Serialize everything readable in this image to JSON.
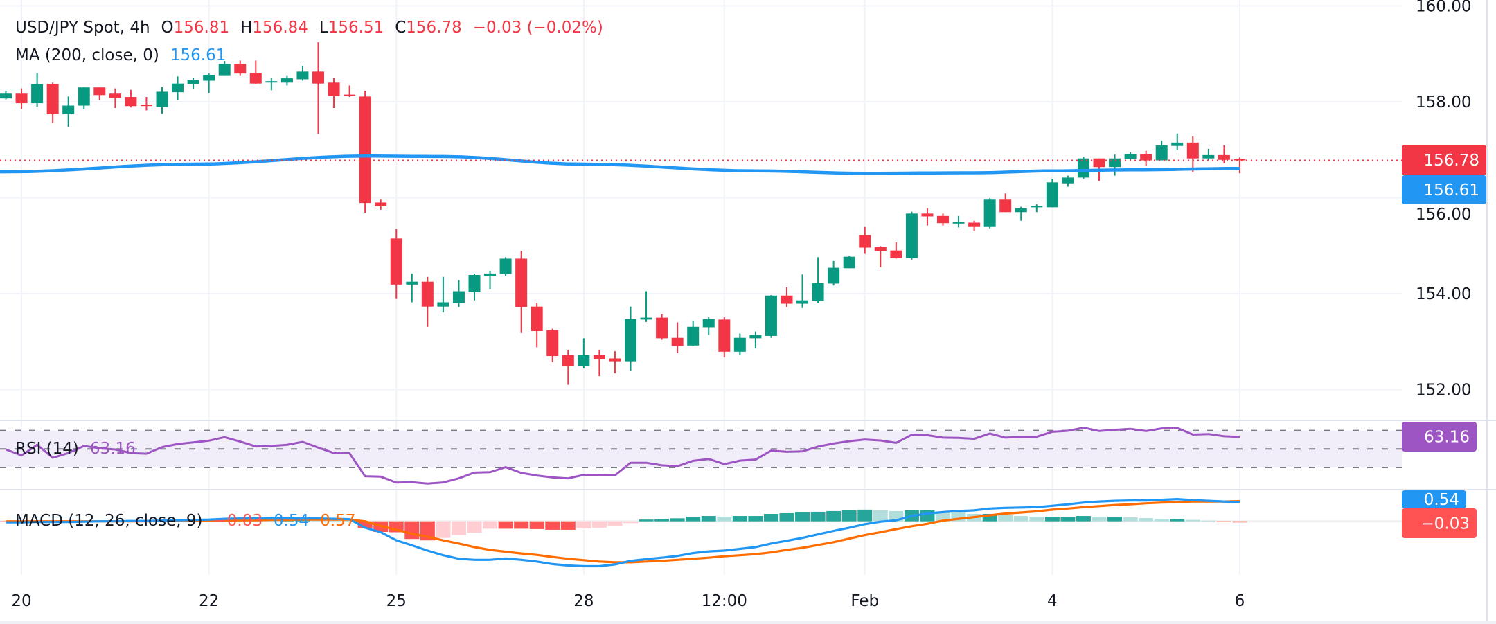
{
  "legend": {
    "symbol": "USD/JPY Spot, 4h",
    "open_label": "O",
    "open": "156.81",
    "high_label": "H",
    "high": "156.84",
    "low_label": "L",
    "low": "156.51",
    "close_label": "C",
    "close": "156.78",
    "change": "−0.03 (−0.02%)",
    "ma_label": "MA (200, close, 0)",
    "ma_value": "156.61",
    "rsi_label": "RSI (14)",
    "rsi_value": "63.16",
    "macd_label": "MACD (12, 26, close, 9)",
    "macd_hist": "−0.03",
    "macd_line": "0.54",
    "macd_signal": "0.57"
  },
  "price_axis": {
    "ticks": [
      "160.00",
      "158.00",
      "156.00",
      "154.00",
      "152.00"
    ],
    "last_price_badge": "156.78",
    "ma_badge": "156.61",
    "rsi_badge": "63.16",
    "macd_badge": "0.54",
    "hist_badge": "−0.03"
  },
  "time_axis": {
    "ticks": [
      {
        "label": "20",
        "candle": 1
      },
      {
        "label": "22",
        "candle": 13
      },
      {
        "label": "25",
        "candle": 25
      },
      {
        "label": "28",
        "candle": 37
      },
      {
        "label": "12:00",
        "candle": 46
      },
      {
        "label": "Feb",
        "candle": 55
      },
      {
        "label": "4",
        "candle": 67
      },
      {
        "label": "6",
        "candle": 79
      }
    ]
  },
  "colors": {
    "up": "#089981",
    "down": "#f23645",
    "ma": "#2196f3",
    "rsi": "#9c55c2",
    "rsi_band": "#f2eef9",
    "macd": "#2196f3",
    "signal": "#ff6d00",
    "hist_up_strong": "#26a69a",
    "hist_up_weak": "#b2dfdb",
    "hist_down_strong": "#ff5252",
    "hist_down_weak": "#ffcdd2",
    "grid": "#f0f3fa",
    "pane_border": "#e0e3eb"
  },
  "chart_data": [
    {
      "type": "candlestick",
      "title": "USD/JPY Spot, 4h",
      "ylim": [
        151.4,
        160.1
      ],
      "yticks": [
        160,
        158,
        156,
        154,
        152
      ],
      "grid": true,
      "last_price": 156.78,
      "ohlc_fields": [
        "open",
        "high",
        "low",
        "close"
      ],
      "candles": [
        [
          158.07,
          158.23,
          158.05,
          158.17
        ],
        [
          158.17,
          158.28,
          157.85,
          157.97
        ],
        [
          157.97,
          158.6,
          157.9,
          158.37
        ],
        [
          158.37,
          158.4,
          157.56,
          157.74
        ],
        [
          157.74,
          158.11,
          157.48,
          157.92
        ],
        [
          157.92,
          158.3,
          157.85,
          158.3
        ],
        [
          158.3,
          158.3,
          158.04,
          158.14
        ],
        [
          158.17,
          158.28,
          157.87,
          158.08
        ],
        [
          158.1,
          158.25,
          157.88,
          157.91
        ],
        [
          157.94,
          158.1,
          157.82,
          157.92
        ],
        [
          157.89,
          158.31,
          157.75,
          158.21
        ],
        [
          158.2,
          158.53,
          158.04,
          158.38
        ],
        [
          158.37,
          158.5,
          158.27,
          158.46
        ],
        [
          158.44,
          158.59,
          158.18,
          158.56
        ],
        [
          158.54,
          158.85,
          158.54,
          158.79
        ],
        [
          158.79,
          158.86,
          158.54,
          158.59
        ],
        [
          158.6,
          158.86,
          158.36,
          158.38
        ],
        [
          158.41,
          158.5,
          158.24,
          158.43
        ],
        [
          158.4,
          158.54,
          158.34,
          158.49
        ],
        [
          158.47,
          158.75,
          158.44,
          158.63
        ],
        [
          158.63,
          159.24,
          157.33,
          158.38
        ],
        [
          158.4,
          158.5,
          157.87,
          158.12
        ],
        [
          158.15,
          158.34,
          158.1,
          158.12
        ],
        [
          158.11,
          158.23,
          155.69,
          155.89
        ],
        [
          155.9,
          155.96,
          155.75,
          155.82
        ],
        [
          155.15,
          155.35,
          153.89,
          154.19
        ],
        [
          154.19,
          154.42,
          153.82,
          154.25
        ],
        [
          154.25,
          154.35,
          153.31,
          153.73
        ],
        [
          153.73,
          154.35,
          153.61,
          153.82
        ],
        [
          153.8,
          154.28,
          153.72,
          154.05
        ],
        [
          154.03,
          154.42,
          153.86,
          154.39
        ],
        [
          154.37,
          154.47,
          154.09,
          154.42
        ],
        [
          154.41,
          154.76,
          154.37,
          154.73
        ],
        [
          154.73,
          154.89,
          153.18,
          153.72
        ],
        [
          153.73,
          153.8,
          152.88,
          153.22
        ],
        [
          153.24,
          153.27,
          152.57,
          152.7
        ],
        [
          152.72,
          152.83,
          152.1,
          152.49
        ],
        [
          152.49,
          153.07,
          152.44,
          152.72
        ],
        [
          152.72,
          152.83,
          152.28,
          152.63
        ],
        [
          152.65,
          152.8,
          152.34,
          152.59
        ],
        [
          152.59,
          153.73,
          152.39,
          153.47
        ],
        [
          153.46,
          154.05,
          153.41,
          153.5
        ],
        [
          153.5,
          153.57,
          153.04,
          153.07
        ],
        [
          153.08,
          153.4,
          152.76,
          152.91
        ],
        [
          152.92,
          153.43,
          152.91,
          153.31
        ],
        [
          153.3,
          153.51,
          153.14,
          153.47
        ],
        [
          153.46,
          153.51,
          152.67,
          152.79
        ],
        [
          152.79,
          153.17,
          152.72,
          153.08
        ],
        [
          153.07,
          153.21,
          152.86,
          153.14
        ],
        [
          153.12,
          153.97,
          153.08,
          153.96
        ],
        [
          153.96,
          154.13,
          153.72,
          153.79
        ],
        [
          153.79,
          154.4,
          153.7,
          153.86
        ],
        [
          153.85,
          154.76,
          153.8,
          154.22
        ],
        [
          154.21,
          154.68,
          154.17,
          154.54
        ],
        [
          154.53,
          154.79,
          154.53,
          154.77
        ],
        [
          155.22,
          155.39,
          154.83,
          154.96
        ],
        [
          154.97,
          154.99,
          154.55,
          154.89
        ],
        [
          154.9,
          155.07,
          154.73,
          154.74
        ],
        [
          154.74,
          155.71,
          154.71,
          155.67
        ],
        [
          155.67,
          155.78,
          155.42,
          155.61
        ],
        [
          155.62,
          155.67,
          155.42,
          155.47
        ],
        [
          155.47,
          155.62,
          155.38,
          155.49
        ],
        [
          155.48,
          155.52,
          155.31,
          155.39
        ],
        [
          155.39,
          155.99,
          155.36,
          155.96
        ],
        [
          155.96,
          156.09,
          155.7,
          155.7
        ],
        [
          155.7,
          155.81,
          155.52,
          155.78
        ],
        [
          155.8,
          155.86,
          155.7,
          155.83
        ],
        [
          155.8,
          156.39,
          155.8,
          156.32
        ],
        [
          156.3,
          156.46,
          156.23,
          156.42
        ],
        [
          156.42,
          156.85,
          156.39,
          156.82
        ],
        [
          156.82,
          156.82,
          156.35,
          156.64
        ],
        [
          156.64,
          156.9,
          156.46,
          156.82
        ],
        [
          156.81,
          156.95,
          156.78,
          156.91
        ],
        [
          156.91,
          156.98,
          156.67,
          156.78
        ],
        [
          156.78,
          157.19,
          156.78,
          157.09
        ],
        [
          157.08,
          157.34,
          156.99,
          157.15
        ],
        [
          157.15,
          157.28,
          156.53,
          156.82
        ],
        [
          156.82,
          157.02,
          156.79,
          156.89
        ],
        [
          156.89,
          157.09,
          156.72,
          156.79
        ],
        [
          156.81,
          156.84,
          156.51,
          156.78
        ]
      ],
      "ma200_points": [
        [
          0,
          156.54
        ],
        [
          12,
          156.7
        ],
        [
          23,
          156.87
        ],
        [
          28,
          156.86
        ],
        [
          37,
          156.7
        ],
        [
          48,
          156.56
        ],
        [
          55,
          156.51
        ],
        [
          62,
          156.52
        ],
        [
          67,
          156.56
        ],
        [
          72,
          156.58
        ],
        [
          79,
          156.61
        ]
      ]
    },
    {
      "type": "line",
      "title": "RSI (14)",
      "ylim": [
        6,
        81
      ],
      "bands": [
        70,
        50,
        30
      ],
      "values": [
        49.5,
        43,
        54.6,
        40.5,
        45.6,
        53.3,
        50.8,
        49.5,
        45.6,
        44.9,
        52,
        55.4,
        57.2,
        59,
        62.8,
        58,
        52.8,
        53.3,
        54.6,
        57.7,
        51.5,
        45.6,
        45.4,
        20.5,
        20,
        13.6,
        14.1,
        12.6,
        13.8,
        18.2,
        24.4,
        24.9,
        30.3,
        24.1,
        21.3,
        19.2,
        18.2,
        22,
        21.8,
        21.5,
        35.1,
        35.1,
        32.3,
        31.3,
        37.2,
        39.2,
        33.6,
        37.4,
        38.5,
        48.2,
        46.9,
        47.4,
        52.6,
        55.9,
        58.5,
        60.3,
        59.2,
        56.7,
        65.4,
        64.9,
        62.3,
        62.1,
        61,
        66.7,
        62.3,
        63.1,
        63.3,
        68.7,
        69.7,
        73.1,
        69.5,
        70.8,
        71.8,
        69.5,
        72.3,
        72.8,
        65.6,
        66.2,
        63.8,
        63.16
      ]
    },
    {
      "type": "bar+line",
      "title": "MACD (12, 26, close, 9)",
      "ylim": [
        -1.52,
        0.9
      ],
      "macd": [
        -0.03,
        -0.03,
        -0.02,
        -0.02,
        -0.02,
        -0.01,
        0,
        0,
        0.01,
        0.01,
        0.02,
        0.03,
        0.04,
        0.05,
        0.07,
        0.08,
        0.08,
        0.08,
        0.08,
        0.08,
        0.08,
        0.07,
        0.06,
        -0.18,
        -0.31,
        -0.54,
        -0.68,
        -0.83,
        -0.96,
        -1.06,
        -1.09,
        -1.09,
        -1.05,
        -1.09,
        -1.14,
        -1.21,
        -1.25,
        -1.27,
        -1.27,
        -1.22,
        -1.12,
        -1.07,
        -1.03,
        -0.98,
        -0.9,
        -0.85,
        -0.83,
        -0.78,
        -0.73,
        -0.63,
        -0.55,
        -0.47,
        -0.37,
        -0.27,
        -0.18,
        -0.08,
        -0.01,
        0.03,
        0.15,
        0.22,
        0.26,
        0.29,
        0.31,
        0.36,
        0.38,
        0.39,
        0.4,
        0.44,
        0.48,
        0.53,
        0.56,
        0.58,
        0.59,
        0.59,
        0.61,
        0.63,
        0.6,
        0.58,
        0.56,
        0.54
      ],
      "signal": [
        0,
        0,
        0,
        0,
        0,
        0,
        0,
        0,
        0,
        0,
        0.01,
        0.01,
        0.01,
        0.02,
        0.02,
        0.03,
        0.03,
        0.04,
        0.04,
        0.05,
        0.05,
        0.05,
        0.05,
        0,
        -0.13,
        -0.24,
        -0.35,
        -0.44,
        -0.54,
        -0.63,
        -0.73,
        -0.81,
        -0.86,
        -0.91,
        -0.95,
        -1.01,
        -1.06,
        -1.1,
        -1.14,
        -1.16,
        -1.16,
        -1.14,
        -1.12,
        -1.09,
        -1.06,
        -1.03,
        -0.99,
        -0.96,
        -0.93,
        -0.88,
        -0.81,
        -0.75,
        -0.67,
        -0.59,
        -0.49,
        -0.39,
        -0.31,
        -0.22,
        -0.14,
        -0.07,
        0.02,
        0.07,
        0.12,
        0.17,
        0.22,
        0.25,
        0.28,
        0.33,
        0.36,
        0.4,
        0.43,
        0.46,
        0.48,
        0.51,
        0.53,
        0.54,
        0.56,
        0.56,
        0.56,
        0.57
      ],
      "histogram": [
        -0.02,
        -0.02,
        -0.02,
        -0.01,
        -0.01,
        -0.01,
        0,
        0,
        0.01,
        0.01,
        0.01,
        0.02,
        0.03,
        0.03,
        0.05,
        0.05,
        0.05,
        0.04,
        0.04,
        0.04,
        0.03,
        0.02,
        0.01,
        -0.2,
        -0.3,
        -0.31,
        -0.5,
        -0.54,
        -0.47,
        -0.39,
        -0.32,
        -0.21,
        -0.21,
        -0.21,
        -0.22,
        -0.24,
        -0.24,
        -0.2,
        -0.18,
        -0.14,
        -0.05,
        0.05,
        0.07,
        0.085,
        0.13,
        0.15,
        0.13,
        0.15,
        0.15,
        0.21,
        0.23,
        0.25,
        0.27,
        0.29,
        0.31,
        0.33,
        0.31,
        0.29,
        0.31,
        0.31,
        0.27,
        0.25,
        0.21,
        0.21,
        0.17,
        0.15,
        0.13,
        0.13,
        0.13,
        0.15,
        0.13,
        0.13,
        0.11,
        0.09,
        0.07,
        0.07,
        0.04,
        0.02,
        -0.02,
        -0.03
      ]
    }
  ]
}
